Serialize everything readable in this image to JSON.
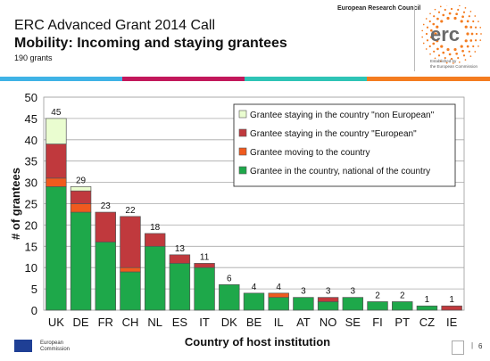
{
  "header": {
    "line1": "ERC Advanced Grant 2014 Call",
    "line2": "Mobility: Incoming and staying grantees",
    "subtitle": "190 grants",
    "council": "European Research Council",
    "logo_text": "erc",
    "logo_sub1": "Established by",
    "logo_sub2": "the European Commission"
  },
  "colors": {
    "non_european": "#eafdd0",
    "european": "#c0393d",
    "moving": "#f05a1e",
    "national": "#1ea84a",
    "band": [
      "#3fb3e6",
      "#c2185b",
      "#2ec4b6",
      "#f47c20"
    ]
  },
  "footer": {
    "ec_line1": "European",
    "ec_line2": "Commission",
    "page": "6"
  },
  "chart_data": {
    "type": "bar",
    "stacked": true,
    "categories": [
      "UK",
      "DE",
      "FR",
      "CH",
      "NL",
      "ES",
      "IT",
      "DK",
      "BE",
      "IL",
      "AT",
      "NO",
      "SE",
      "FI",
      "PT",
      "CZ",
      "IE"
    ],
    "series": [
      {
        "name": "Grantee in the country, national of the country",
        "values": [
          29,
          23,
          16,
          9,
          15,
          11,
          10,
          6,
          4,
          3,
          3,
          2,
          3,
          2,
          2,
          1,
          0
        ]
      },
      {
        "name": "Grantee moving to the country",
        "values": [
          2,
          2,
          0,
          1,
          0,
          0,
          0,
          0,
          0,
          1,
          0,
          0,
          0,
          0,
          0,
          0,
          0
        ]
      },
      {
        "name": "Grantee staying in the country \"European\"",
        "values": [
          8,
          3,
          7,
          12,
          3,
          2,
          1,
          0,
          0,
          0,
          0,
          1,
          0,
          0,
          0,
          0,
          1
        ]
      },
      {
        "name": "Grantee staying in the country \"non European\"",
        "values": [
          6,
          1,
          0,
          0,
          0,
          0,
          0,
          0,
          0,
          0,
          0,
          0,
          0,
          0,
          0,
          0,
          0
        ]
      }
    ],
    "totals": [
      45,
      29,
      23,
      22,
      18,
      13,
      11,
      6,
      4,
      4,
      3,
      3,
      3,
      2,
      2,
      1,
      1
    ],
    "legend_order": [
      "Grantee staying in the country \"non European\"",
      "Grantee staying in the country \"European\"",
      "Grantee moving to the country",
      "Grantee in the country, national of the country"
    ],
    "xlabel": "Country of host institution",
    "ylabel": "# of grantees",
    "ylim": [
      0,
      50
    ],
    "yticks": [
      0,
      5,
      10,
      15,
      20,
      25,
      30,
      35,
      40,
      45,
      50
    ],
    "grid": true,
    "legend_position": "top-right"
  }
}
